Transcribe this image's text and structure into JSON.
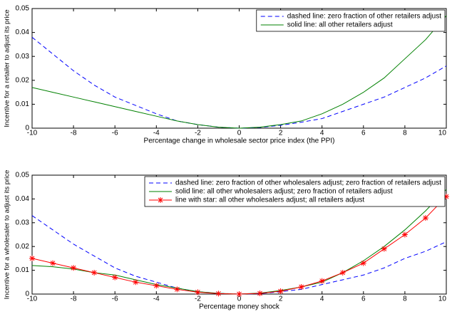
{
  "chart_data": [
    {
      "type": "line",
      "xlabel": "Percentage change in wholesale sector price index (the PPI)",
      "ylabel": "Incentive for a retailer to adjust its price",
      "x": [
        -10,
        -9,
        -8,
        -7,
        -6,
        -5,
        -4,
        -3,
        -2,
        -1,
        0,
        1,
        2,
        3,
        4,
        5,
        6,
        7,
        8,
        9,
        10
      ],
      "xlim": [
        -10,
        10
      ],
      "xticks": [
        -10,
        -8,
        -6,
        -4,
        -2,
        0,
        2,
        4,
        6,
        8,
        10
      ],
      "ylim": [
        0,
        0.05
      ],
      "yticks": [
        0,
        0.01,
        0.02,
        0.03,
        0.04,
        0.05
      ],
      "legend": "upper right",
      "series": [
        {
          "name": "dashed line: zero fraction of other retailers adjust",
          "color": "#0000ff",
          "dash": true,
          "values": [
            0.038,
            0.031,
            0.024,
            0.018,
            0.013,
            0.0095,
            0.006,
            0.003,
            0.0015,
            0.0004,
            0,
            0.0003,
            0.0012,
            0.0025,
            0.004,
            0.007,
            0.01,
            0.013,
            0.017,
            0.021,
            0.026
          ]
        },
        {
          "name": "solid line: all other retailers adjust",
          "color": "#008000",
          "values": [
            0.017,
            0.015,
            0.013,
            0.011,
            0.009,
            0.007,
            0.005,
            0.003,
            0.0015,
            0.0004,
            0,
            0.0004,
            0.0015,
            0.003,
            0.006,
            0.01,
            0.015,
            0.021,
            0.029,
            0.037,
            0.047
          ]
        }
      ]
    },
    {
      "type": "line",
      "xlabel": "Percentage money shock",
      "ylabel": "Incentive for a wholesaler to adjust its price",
      "x": [
        -10,
        -9,
        -8,
        -7,
        -6,
        -5,
        -4,
        -3,
        -2,
        -1,
        0,
        1,
        2,
        3,
        4,
        5,
        6,
        7,
        8,
        9,
        10
      ],
      "xlim": [
        -10,
        10
      ],
      "xticks": [
        -10,
        -8,
        -6,
        -4,
        -2,
        0,
        2,
        4,
        6,
        8,
        10
      ],
      "ylim": [
        0,
        0.05
      ],
      "yticks": [
        0,
        0.01,
        0.02,
        0.03,
        0.04,
        0.05
      ],
      "legend": "upper right",
      "series": [
        {
          "name": "dashed line: zero fraction of other wholesalers adjust; zero fraction of retailers adjust",
          "color": "#0000ff",
          "dash": true,
          "values": [
            0.033,
            0.027,
            0.021,
            0.016,
            0.011,
            0.0075,
            0.005,
            0.0025,
            0.001,
            0.0003,
            0,
            0.0002,
            0.001,
            0.002,
            0.004,
            0.006,
            0.008,
            0.011,
            0.015,
            0.018,
            0.022
          ]
        },
        {
          "name": "solid line: all other wholesalers adjust; zero fraction of retailers adjust",
          "color": "#008000",
          "values": [
            0.012,
            0.0115,
            0.0105,
            0.009,
            0.008,
            0.006,
            0.004,
            0.0025,
            0.001,
            0.0003,
            0,
            0.0004,
            0.0015,
            0.003,
            0.005,
            0.009,
            0.014,
            0.02,
            0.027,
            0.035,
            0.044
          ]
        },
        {
          "name": "line with star: all other wholesalers adjust; all retailers adjust",
          "color": "#ff0000",
          "marker": "star",
          "values": [
            0.015,
            0.013,
            0.011,
            0.009,
            0.007,
            0.005,
            0.0035,
            0.002,
            0.0008,
            0.0002,
            0,
            0.0003,
            0.0012,
            0.003,
            0.0055,
            0.009,
            0.013,
            0.019,
            0.025,
            0.032,
            0.041
          ]
        }
      ]
    }
  ]
}
